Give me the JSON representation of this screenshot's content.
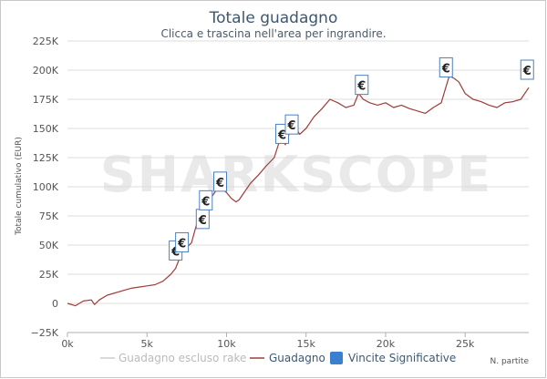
{
  "chart_data": {
    "type": "line",
    "title": "Totale guadagno",
    "subtitle": "Clicca e trascina nell'area per ingrandire.",
    "watermark": "SHARKSCOPE",
    "ylabel": "Totale cumulativo (EUR)",
    "xlabel": "N. partite",
    "xlim": [
      0,
      29000
    ],
    "ylim": [
      -25000,
      225000
    ],
    "x_ticks": [
      {
        "value": 0,
        "label": "0k"
      },
      {
        "value": 5000,
        "label": "5k"
      },
      {
        "value": 10000,
        "label": "10k"
      },
      {
        "value": 15000,
        "label": "15k"
      },
      {
        "value": 20000,
        "label": "20k"
      },
      {
        "value": 25000,
        "label": "25k"
      }
    ],
    "y_ticks": [
      {
        "value": 225000,
        "label": "225K"
      },
      {
        "value": 200000,
        "label": "200K"
      },
      {
        "value": 175000,
        "label": "175K"
      },
      {
        "value": 150000,
        "label": "150K"
      },
      {
        "value": 125000,
        "label": "125K"
      },
      {
        "value": 100000,
        "label": "100K"
      },
      {
        "value": 75000,
        "label": "75K"
      },
      {
        "value": 50000,
        "label": "50K"
      },
      {
        "value": 25000,
        "label": "25K"
      },
      {
        "value": 0,
        "label": "0"
      },
      {
        "value": -25000,
        "label": "−25K"
      }
    ],
    "grid": true,
    "legend_position": "bottom",
    "series": [
      {
        "name": "Guadagno escluso rake",
        "color": "#cccccc",
        "x": [],
        "y": []
      },
      {
        "name": "Guadagno",
        "color": "#a33a3a",
        "x": [
          0,
          500,
          1000,
          1500,
          1700,
          2000,
          2500,
          3000,
          3500,
          4000,
          4500,
          5000,
          5500,
          6000,
          6500,
          6800,
          7000,
          7200,
          7500,
          7800,
          8000,
          8200,
          8500,
          8700,
          9000,
          9300,
          9600,
          10000,
          10300,
          10600,
          10800,
          11000,
          11500,
          12000,
          12500,
          13000,
          13300,
          13500,
          13700,
          14000,
          14300,
          14600,
          15000,
          15500,
          16000,
          16500,
          17000,
          17500,
          18000,
          18300,
          18600,
          19000,
          19500,
          20000,
          20500,
          21000,
          21500,
          22000,
          22500,
          23000,
          23500,
          23800,
          24000,
          24300,
          24600,
          25000,
          25500,
          26000,
          26500,
          27000,
          27500,
          28000,
          28500,
          29000
        ],
        "y": [
          0,
          -2000,
          2000,
          3000,
          -1000,
          3000,
          7000,
          9000,
          11000,
          13000,
          14000,
          15000,
          16000,
          19000,
          25000,
          30000,
          37000,
          44000,
          48000,
          52000,
          62000,
          72000,
          78000,
          84000,
          90000,
          96000,
          100000,
          95000,
          90000,
          87000,
          89000,
          93000,
          103000,
          110000,
          118000,
          125000,
          138000,
          142000,
          136000,
          148000,
          152000,
          145000,
          150000,
          160000,
          167000,
          175000,
          172000,
          168000,
          170000,
          180000,
          175000,
          172000,
          170000,
          172000,
          168000,
          170000,
          167000,
          165000,
          163000,
          168000,
          172000,
          186000,
          195000,
          193000,
          190000,
          180000,
          175000,
          173000,
          170000,
          168000,
          172000,
          173000,
          175000,
          185000
        ]
      }
    ],
    "significant_wins": {
      "name": "Vincite Significative",
      "color": "#3a7fd0",
      "symbol": "€",
      "points": [
        {
          "x": 6800,
          "y": 45000
        },
        {
          "x": 7200,
          "y": 52000
        },
        {
          "x": 8500,
          "y": 72000
        },
        {
          "x": 8700,
          "y": 88000
        },
        {
          "x": 9600,
          "y": 104000
        },
        {
          "x": 13500,
          "y": 145000
        },
        {
          "x": 14100,
          "y": 153000
        },
        {
          "x": 18500,
          "y": 187000
        },
        {
          "x": 23800,
          "y": 202000
        },
        {
          "x": 28900,
          "y": 200000
        }
      ]
    }
  }
}
